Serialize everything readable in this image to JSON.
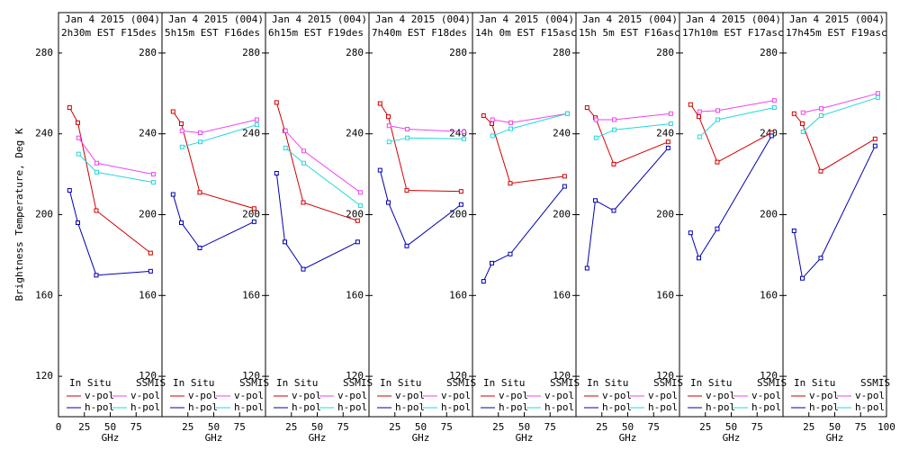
{
  "chart_data": [
    {
      "type": "line",
      "title": "Jan 4 2015 (004)",
      "subtitle": "2h30m EST F15des",
      "x_label": "GHz",
      "y_label": "Brightness Temperature, Deg K",
      "xlim": [
        0,
        100
      ],
      "xticks": [
        0,
        25,
        50,
        75
      ],
      "ylim": [
        100,
        300
      ],
      "yticks": [
        120,
        160,
        200,
        240,
        280
      ],
      "series_groups": [
        {
          "name": "In Situ",
          "x": [
            10.7,
            18.7,
            36.5,
            89
          ],
          "series": [
            {
              "name": "v-pol",
              "color": "#d00000",
              "values": [
                253,
                245.5,
                202,
                181
              ]
            },
            {
              "name": "h-pol",
              "color": "#0000b0",
              "values": [
                212,
                196,
                170,
                172
              ]
            }
          ]
        },
        {
          "name": "SSMIS",
          "x": [
            19.35,
            37,
            91.65
          ],
          "series": [
            {
              "name": "v-pol",
              "color": "#ee44ee",
              "values": [
                238,
                225.5,
                220
              ]
            },
            {
              "name": "h-pol",
              "color": "#22d8d8",
              "values": [
                230,
                221,
                216
              ]
            }
          ]
        }
      ]
    },
    {
      "type": "line",
      "title": "Jan 4 2015 (004)",
      "subtitle": "5h15m EST F16des",
      "x_label": "GHz",
      "xlim": [
        0,
        100
      ],
      "xticks": [
        25,
        50,
        75
      ],
      "ylim": [
        100,
        300
      ],
      "yticks": [
        120,
        160,
        200,
        240,
        280
      ],
      "series_groups": [
        {
          "name": "In Situ",
          "x": [
            10.7,
            18.7,
            36.5,
            89
          ],
          "series": [
            {
              "name": "v-pol",
              "color": "#d00000",
              "values": [
                251,
                245,
                211,
                203
              ]
            },
            {
              "name": "h-pol",
              "color": "#0000b0",
              "values": [
                210,
                196,
                183.5,
                196.5
              ]
            }
          ]
        },
        {
          "name": "SSMIS",
          "x": [
            19.35,
            37,
            91.65
          ],
          "series": [
            {
              "name": "v-pol",
              "color": "#ee44ee",
              "values": [
                241.5,
                240.5,
                247
              ]
            },
            {
              "name": "h-pol",
              "color": "#22d8d8",
              "values": [
                233.5,
                236,
                244.5
              ]
            }
          ]
        }
      ]
    },
    {
      "type": "line",
      "title": "Jan 4 2015 (004)",
      "subtitle": "6h15m EST F19des",
      "x_label": "GHz",
      "xlim": [
        0,
        100
      ],
      "xticks": [
        25,
        50,
        75
      ],
      "ylim": [
        100,
        300
      ],
      "yticks": [
        120,
        160,
        200,
        240,
        280
      ],
      "series_groups": [
        {
          "name": "In Situ",
          "x": [
            10.7,
            18.7,
            36.5,
            89
          ],
          "series": [
            {
              "name": "v-pol",
              "color": "#d00000",
              "values": [
                255.5,
                241.5,
                206,
                197
              ]
            },
            {
              "name": "h-pol",
              "color": "#0000b0",
              "values": [
                220.5,
                186.5,
                173,
                186.5
              ]
            }
          ]
        },
        {
          "name": "SSMIS",
          "x": [
            19.35,
            37,
            91.65
          ],
          "series": [
            {
              "name": "v-pol",
              "color": "#ee44ee",
              "values": [
                241.5,
                231.5,
                211
              ]
            },
            {
              "name": "h-pol",
              "color": "#22d8d8",
              "values": [
                233,
                225.5,
                204.5
              ]
            }
          ]
        }
      ]
    },
    {
      "type": "line",
      "title": "Jan 4 2015 (004)",
      "subtitle": "7h40m EST F18des",
      "x_label": "GHz",
      "xlim": [
        0,
        100
      ],
      "xticks": [
        25,
        50,
        75
      ],
      "ylim": [
        100,
        300
      ],
      "yticks": [
        120,
        160,
        200,
        240,
        280
      ],
      "series_groups": [
        {
          "name": "In Situ",
          "x": [
            10.7,
            18.7,
            36.5,
            89
          ],
          "series": [
            {
              "name": "v-pol",
              "color": "#d00000",
              "values": [
                255,
                248.5,
                212,
                211.5
              ]
            },
            {
              "name": "h-pol",
              "color": "#0000b0",
              "values": [
                222,
                206,
                184.5,
                205
              ]
            }
          ]
        },
        {
          "name": "SSMIS",
          "x": [
            19.35,
            37,
            91.65
          ],
          "series": [
            {
              "name": "v-pol",
              "color": "#ee44ee",
              "values": [
                244,
                242.3,
                241
              ]
            },
            {
              "name": "h-pol",
              "color": "#22d8d8",
              "values": [
                236,
                238,
                237.5
              ]
            }
          ]
        }
      ]
    },
    {
      "type": "line",
      "title": "Jan 4 2015 (004)",
      "subtitle": "14h 0m EST F15asc",
      "x_label": "GHz",
      "xlim": [
        0,
        100
      ],
      "xticks": [
        25,
        50,
        75
      ],
      "ylim": [
        100,
        300
      ],
      "yticks": [
        120,
        160,
        200,
        240,
        280
      ],
      "series_groups": [
        {
          "name": "In Situ",
          "x": [
            10.7,
            18.7,
            36.5,
            89
          ],
          "series": [
            {
              "name": "v-pol",
              "color": "#d00000",
              "values": [
                249,
                245,
                215.5,
                219
              ]
            },
            {
              "name": "h-pol",
              "color": "#0000b0",
              "values": [
                167,
                176,
                180.5,
                214
              ]
            }
          ]
        },
        {
          "name": "SSMIS",
          "x": [
            19.35,
            37,
            91.65
          ],
          "series": [
            {
              "name": "v-pol",
              "color": "#ee44ee",
              "values": [
                247,
                245.5,
                250
              ]
            },
            {
              "name": "h-pol",
              "color": "#22d8d8",
              "values": [
                239,
                242.5,
                250
              ]
            }
          ]
        }
      ]
    },
    {
      "type": "line",
      "title": "Jan 4 2015 (004)",
      "subtitle": "15h 5m EST F16asc",
      "x_label": "GHz",
      "xlim": [
        0,
        100
      ],
      "xticks": [
        25,
        50,
        75
      ],
      "ylim": [
        100,
        300
      ],
      "yticks": [
        120,
        160,
        200,
        240,
        280
      ],
      "series_groups": [
        {
          "name": "In Situ",
          "x": [
            10.7,
            18.7,
            36.5,
            89
          ],
          "series": [
            {
              "name": "v-pol",
              "color": "#d00000",
              "values": [
                253,
                248,
                225,
                236
              ]
            },
            {
              "name": "h-pol",
              "color": "#0000b0",
              "values": [
                173.5,
                207,
                202,
                233
              ]
            }
          ]
        },
        {
          "name": "SSMIS",
          "x": [
            19.35,
            37,
            91.65
          ],
          "series": [
            {
              "name": "v-pol",
              "color": "#ee44ee",
              "values": [
                247,
                247,
                250
              ]
            },
            {
              "name": "h-pol",
              "color": "#22d8d8",
              "values": [
                238,
                242,
                245
              ]
            }
          ]
        }
      ]
    },
    {
      "type": "line",
      "title": "Jan 4 2015 (004)",
      "subtitle": "17h10m EST F17asc",
      "x_label": "GHz",
      "xlim": [
        0,
        100
      ],
      "xticks": [
        25,
        50,
        75
      ],
      "ylim": [
        100,
        300
      ],
      "yticks": [
        120,
        160,
        200,
        240,
        280
      ],
      "series_groups": [
        {
          "name": "In Situ",
          "x": [
            10.7,
            18.7,
            36.5,
            89
          ],
          "series": [
            {
              "name": "v-pol",
              "color": "#d00000",
              "values": [
                254.5,
                248.5,
                226,
                240.5
              ]
            },
            {
              "name": "h-pol",
              "color": "#0000b0",
              "values": [
                191,
                178.5,
                193,
                239
              ]
            }
          ]
        },
        {
          "name": "SSMIS",
          "x": [
            19.35,
            37,
            91.65
          ],
          "series": [
            {
              "name": "v-pol",
              "color": "#ee44ee",
              "values": [
                251,
                251.5,
                256.5
              ]
            },
            {
              "name": "h-pol",
              "color": "#22d8d8",
              "values": [
                238.5,
                247,
                253
              ]
            }
          ]
        }
      ]
    },
    {
      "type": "line",
      "title": "Jan 4 2015 (004)",
      "subtitle": "17h45m EST F19asc",
      "x_label": "GHz",
      "xlim": [
        0,
        100
      ],
      "xticks": [
        25,
        50,
        75,
        100
      ],
      "ylim": [
        100,
        300
      ],
      "yticks": [
        120,
        160,
        200,
        240,
        280
      ],
      "series_groups": [
        {
          "name": "In Situ",
          "x": [
            10.7,
            18.7,
            36.5,
            89
          ],
          "series": [
            {
              "name": "v-pol",
              "color": "#d00000",
              "values": [
                250,
                245,
                221.5,
                237.5
              ]
            },
            {
              "name": "h-pol",
              "color": "#0000b0",
              "values": [
                192,
                168.5,
                178.5,
                234
              ]
            }
          ]
        },
        {
          "name": "SSMIS",
          "x": [
            19.35,
            37,
            91.65
          ],
          "series": [
            {
              "name": "v-pol",
              "color": "#ee44ee",
              "values": [
                250.5,
                252.5,
                260
              ]
            },
            {
              "name": "h-pol",
              "color": "#22d8d8",
              "values": [
                241,
                249,
                258
              ]
            }
          ]
        }
      ]
    }
  ]
}
